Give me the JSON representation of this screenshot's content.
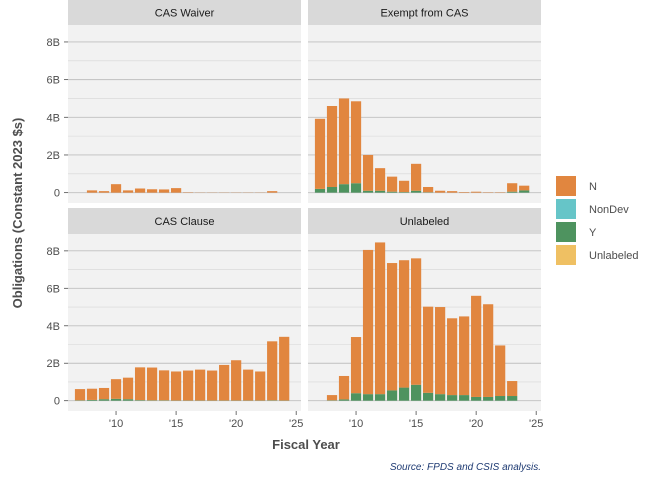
{
  "chart_data": {
    "type": "bar",
    "stacked": true,
    "xlabel": "Fiscal Year",
    "ylabel": "Obligations (Constant 2023 $s)",
    "caption": "Source: FPDS and CSIS analysis.",
    "x_ticks": [
      {
        "value": 2010,
        "label": "'10"
      },
      {
        "value": 2015,
        "label": "'15"
      },
      {
        "value": 2020,
        "label": "'20"
      },
      {
        "value": 2025,
        "label": "'25"
      }
    ],
    "y_ticks": [
      {
        "value": 0,
        "label": "0"
      },
      {
        "value": 2,
        "label": "2B"
      },
      {
        "value": 4,
        "label": "4B"
      },
      {
        "value": 6,
        "label": "6B"
      },
      {
        "value": 8,
        "label": "8B"
      }
    ],
    "xlim": [
      2006,
      2025.4
    ],
    "ylim": [
      -0.55,
      8.9
    ],
    "grid": true,
    "legend_position": "right",
    "series": [
      {
        "name": "N",
        "color": "#E1863F"
      },
      {
        "name": "NonDev",
        "color": "#66C5C8"
      },
      {
        "name": "Y",
        "color": "#4E935F"
      },
      {
        "name": "Unlabeled",
        "color": "#EFC063"
      }
    ],
    "panels": [
      {
        "title": "CAS Waiver",
        "years": [
          2008,
          2009,
          2010,
          2011,
          2012,
          2013,
          2014,
          2015,
          2016,
          2017,
          2018,
          2019,
          2020,
          2021,
          2022,
          2023,
          2024
        ],
        "N": [
          0.12,
          0.08,
          0.45,
          0.12,
          0.22,
          0.18,
          0.17,
          0.24,
          0.02,
          0.01,
          0.01,
          0.01,
          0.01,
          0.01,
          0.01,
          0.08,
          0.0
        ],
        "Y": [
          0,
          0,
          0,
          0,
          0,
          0,
          0,
          0,
          0,
          0,
          0,
          0,
          0,
          0,
          0,
          0,
          0
        ]
      },
      {
        "title": "Exempt from CAS",
        "years": [
          2007,
          2008,
          2009,
          2010,
          2011,
          2012,
          2013,
          2014,
          2015,
          2016,
          2017,
          2018,
          2019,
          2020,
          2021,
          2022,
          2023,
          2024
        ],
        "N": [
          3.72,
          4.3,
          4.55,
          4.35,
          1.9,
          1.2,
          0.8,
          0.6,
          1.43,
          0.28,
          0.1,
          0.08,
          0.03,
          0.05,
          0.02,
          0.02,
          0.45,
          0.25
        ],
        "Y": [
          0.2,
          0.3,
          0.45,
          0.5,
          0.1,
          0.1,
          0.05,
          0.03,
          0.1,
          0.02,
          0,
          0,
          0,
          0,
          0,
          0,
          0.05,
          0.12
        ]
      },
      {
        "title": "CAS Clause",
        "years": [
          2007,
          2008,
          2009,
          2010,
          2011,
          2012,
          2013,
          2014,
          2015,
          2016,
          2017,
          2018,
          2019,
          2020,
          2021,
          2022,
          2023,
          2024
        ],
        "N": [
          0.6,
          0.6,
          0.6,
          1.05,
          1.15,
          1.75,
          1.75,
          1.6,
          1.55,
          1.6,
          1.65,
          1.6,
          1.9,
          2.15,
          1.65,
          1.55,
          3.15,
          3.4
        ],
        "Y": [
          0.02,
          0.04,
          0.08,
          0.1,
          0.08,
          0.03,
          0.02,
          0.02,
          0.01,
          0.01,
          0.01,
          0.01,
          0.01,
          0.01,
          0.01,
          0.01,
          0.02,
          0.01
        ]
      },
      {
        "title": "Unlabeled",
        "years": [
          2008,
          2009,
          2010,
          2011,
          2012,
          2013,
          2014,
          2015,
          2016,
          2017,
          2018,
          2019,
          2020,
          2021,
          2022,
          2023
        ],
        "N": [
          0.28,
          1.25,
          3.0,
          7.7,
          8.1,
          6.8,
          6.8,
          6.75,
          4.6,
          4.65,
          4.1,
          4.2,
          5.4,
          4.95,
          2.7,
          0.8
        ],
        "Y": [
          0.02,
          0.07,
          0.4,
          0.35,
          0.35,
          0.55,
          0.7,
          0.85,
          0.42,
          0.35,
          0.3,
          0.3,
          0.2,
          0.2,
          0.25,
          0.25
        ]
      }
    ]
  }
}
